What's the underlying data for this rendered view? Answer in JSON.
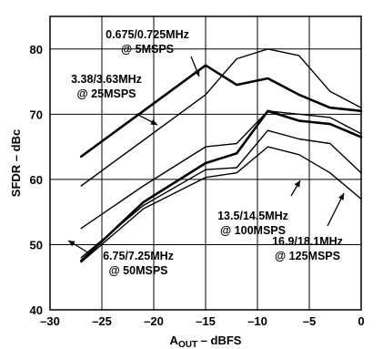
{
  "chart_data": {
    "type": "line",
    "title": "",
    "xlabel": "A_OUT – dBFS",
    "ylabel": "SFDR – dBc",
    "xlim": [
      -30,
      0
    ],
    "ylim": [
      40,
      85
    ],
    "x_ticks": [
      -30,
      -25,
      -20,
      -15,
      -10,
      -5,
      0
    ],
    "x_tick_labels": [
      "–30",
      "–25",
      "–20",
      "–15",
      "–10",
      "–5",
      "0"
    ],
    "y_ticks": [
      40,
      50,
      60,
      70,
      80
    ],
    "y_tick_labels": [
      "40",
      "50",
      "60",
      "70",
      "80"
    ],
    "grid": true,
    "series": [
      {
        "name": "0.675/0.725MHz @ 5MSPS",
        "weight": "thick",
        "x": [
          -27,
          -21,
          -15,
          -12,
          -9,
          -6,
          -3,
          0
        ],
        "y": [
          63.5,
          70.5,
          77.5,
          74.5,
          75.5,
          73,
          71,
          70.5
        ]
      },
      {
        "name": "3.38/3.63MHz @ 25MSPS",
        "weight": "thin",
        "x": [
          -27,
          -21,
          -15,
          -12,
          -9,
          -6,
          -3,
          0
        ],
        "y": [
          59,
          66,
          73,
          78.5,
          80,
          79,
          73.5,
          71
        ]
      },
      {
        "name": "13.5/14.5MHz @ 100MSPS",
        "weight": "thin",
        "x": [
          -27,
          -21,
          -15,
          -12,
          -9,
          -6,
          -3,
          0
        ],
        "y": [
          52.5,
          59,
          65,
          65.5,
          70.5,
          70,
          69.5,
          67
        ]
      },
      {
        "name": "6.75/7.25MHz @ 50MSPS",
        "weight": "thick",
        "x": [
          -27,
          -21,
          -15,
          -12,
          -9,
          -6,
          -3,
          0
        ],
        "y": [
          47.5,
          56.5,
          62.5,
          64,
          70.5,
          69,
          68.5,
          66.5
        ]
      },
      {
        "name": "16.9/18.1MHz @ 125MSPS",
        "weight": "thin",
        "x": [
          -27,
          -21,
          -15,
          -12,
          -9,
          -6,
          -3,
          0
        ],
        "y": [
          48,
          56,
          61.5,
          61.8,
          67.5,
          66.2,
          65.5,
          61
        ]
      },
      {
        "name": "",
        "weight": "thin",
        "x": [
          -27,
          -21,
          -15,
          -12,
          -9,
          -6,
          -3,
          0
        ],
        "y": [
          47.3,
          55.5,
          60.3,
          61,
          65,
          63.8,
          61,
          57
        ]
      }
    ],
    "annotations": [
      {
        "lines": [
          "0.675/0.725MHz",
          "@ 5MSPS"
        ]
      },
      {
        "lines": [
          "3.38/3.63MHz",
          "@ 25MSPS"
        ]
      },
      {
        "lines": [
          "13.5/14.5MHz",
          "@ 100MSPS"
        ]
      },
      {
        "lines": [
          "6.75/7.25MHz",
          "@ 50MSPS"
        ]
      },
      {
        "lines": [
          "16.9/18.1MHz",
          "@ 125MSPS"
        ]
      }
    ]
  }
}
